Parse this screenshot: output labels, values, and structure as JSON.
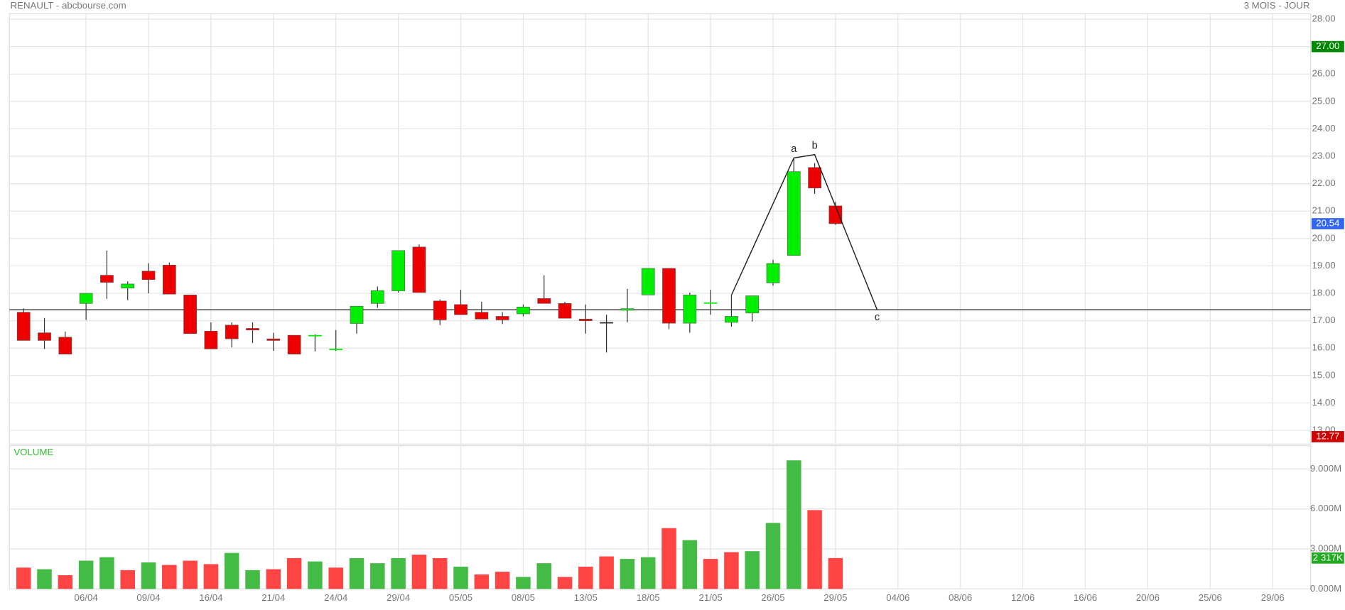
{
  "chart_data": {
    "type": "candlestick",
    "title": "RENAULT - abcbourse.com",
    "subtitle": "3 MOIS - JOUR",
    "volume_title": "VOLUME",
    "categories": [
      null,
      null,
      null,
      "06/04",
      null,
      null,
      "09/04",
      null,
      null,
      "16/04",
      null,
      null,
      "21/04",
      null,
      null,
      "24/04",
      null,
      null,
      "29/04",
      null,
      null,
      "05/05",
      null,
      null,
      "08/05",
      null,
      null,
      "13/05",
      null,
      null,
      "18/05",
      null,
      null,
      "21/05",
      null,
      null,
      "26/05",
      null,
      null,
      "29/05",
      null,
      null,
      "04/06",
      null,
      null,
      "08/06",
      null,
      null,
      "12/06",
      null,
      null,
      "16/06",
      null,
      null,
      "20/06",
      null,
      null,
      "25/06",
      null,
      null,
      "29/06",
      null
    ],
    "open": [
      17.31,
      16.56,
      16.4,
      17.63,
      18.66,
      18.19,
      18.81,
      19.03,
      17.94,
      16.62,
      16.84,
      16.72,
      16.34,
      16.47,
      16.44,
      15.94,
      16.9,
      17.63,
      18.09,
      19.69,
      17.72,
      17.59,
      17.31,
      17.16,
      17.25,
      17.81,
      17.63,
      17.06,
      16.94,
      17.38,
      17.94,
      18.91,
      16.91,
      17.63,
      16.94,
      17.28,
      18.38,
      19.38,
      22.59,
      21.19,
      null,
      null,
      null,
      null,
      null,
      null,
      null,
      null,
      null,
      null,
      null,
      null,
      null,
      null,
      null,
      null,
      null,
      null,
      null,
      null,
      null,
      null
    ],
    "high": [
      17.45,
      17.1,
      16.6,
      18.0,
      19.56,
      18.44,
      19.1,
      19.12,
      17.94,
      16.94,
      16.94,
      16.94,
      16.56,
      16.47,
      16.5,
      16.66,
      17.53,
      18.25,
      19.56,
      19.78,
      17.78,
      18.13,
      17.69,
      17.31,
      17.59,
      18.66,
      17.69,
      17.59,
      17.22,
      18.16,
      18.91,
      18.91,
      18.03,
      18.13,
      17.94,
      17.91,
      19.22,
      22.91,
      22.75,
      21.34,
      null,
      null,
      null,
      null,
      null,
      null,
      null,
      null,
      null,
      null,
      null,
      null,
      null,
      null,
      null,
      null,
      null,
      null,
      null,
      null,
      null,
      null
    ],
    "low": [
      16.28,
      15.97,
      15.78,
      17.03,
      17.8,
      17.75,
      18.0,
      17.97,
      16.53,
      15.97,
      16.03,
      16.19,
      15.9,
      15.78,
      15.88,
      15.9,
      16.53,
      17.47,
      18.03,
      18.03,
      16.84,
      17.22,
      17.06,
      16.88,
      17.16,
      17.63,
      17.09,
      16.53,
      15.84,
      16.94,
      17.94,
      16.69,
      16.56,
      17.22,
      16.78,
      16.97,
      18.28,
      19.38,
      21.63,
      20.5,
      null,
      null,
      null,
      null,
      null,
      null,
      null,
      null,
      null,
      null,
      null,
      null,
      null,
      null,
      null,
      null,
      null,
      null,
      null,
      null,
      null,
      null
    ],
    "close": [
      16.28,
      16.28,
      15.78,
      18.0,
      18.4,
      18.34,
      18.5,
      17.97,
      16.53,
      15.97,
      16.34,
      16.66,
      16.28,
      15.78,
      16.47,
      15.97,
      17.53,
      18.1,
      19.56,
      18.03,
      17.03,
      17.22,
      17.06,
      17.03,
      17.5,
      17.63,
      17.09,
      17.0,
      16.94,
      17.44,
      18.91,
      16.91,
      17.94,
      17.66,
      17.16,
      17.91,
      19.09,
      22.44,
      21.84,
      20.54,
      null,
      null,
      null,
      null,
      null,
      null,
      null,
      null,
      null,
      null,
      null,
      null,
      null,
      null,
      null,
      null,
      null,
      null,
      null,
      null,
      null,
      null
    ],
    "up_color": "#00ee00",
    "down_color": "#ee0000",
    "ylim": [
      12.5,
      28.2
    ],
    "yticks": [
      {
        "value": 13,
        "label": "13.00"
      },
      {
        "value": 14,
        "label": "14.00"
      },
      {
        "value": 15,
        "label": "15.00"
      },
      {
        "value": 16,
        "label": "16.00"
      },
      {
        "value": 17,
        "label": "17.00"
      },
      {
        "value": 18,
        "label": "18.00"
      },
      {
        "value": 19,
        "label": "19.00"
      },
      {
        "value": 20,
        "label": "20.00"
      },
      {
        "value": 21,
        "label": "21.00"
      },
      {
        "value": 22,
        "label": "22.00"
      },
      {
        "value": 23,
        "label": "23.00"
      },
      {
        "value": 24,
        "label": "24.00"
      },
      {
        "value": 25,
        "label": "25.00"
      },
      {
        "value": 26,
        "label": "26.00"
      },
      {
        "value": 27,
        "label": "27.00"
      },
      {
        "value": 28,
        "label": "28.00"
      }
    ],
    "price_markers": [
      {
        "value": 27,
        "label": "27.00",
        "color": "#008800"
      },
      {
        "value": 20.54,
        "label": "20.54",
        "color": "#3366ee"
      },
      {
        "value": 12.77,
        "label": "12.77",
        "color": "#cc0000"
      }
    ],
    "hline": 17.4,
    "drawing": {
      "x": [
        34,
        37,
        38,
        41
      ],
      "y": [
        17.93,
        22.94,
        23.06,
        17.4
      ],
      "labels": [
        null,
        "a",
        "b",
        "c"
      ]
    },
    "volume": [
      1.6,
      1.48,
      1.03,
      2.12,
      2.38,
      1.41,
      1.99,
      1.8,
      2.12,
      1.86,
      2.7,
      1.41,
      1.48,
      2.31,
      2.06,
      1.6,
      2.31,
      1.93,
      2.31,
      2.57,
      2.31,
      1.67,
      1.09,
      1.29,
      0.9,
      1.93,
      0.9,
      1.67,
      2.44,
      2.25,
      2.38,
      4.56,
      3.66,
      2.25,
      2.76,
      2.83,
      4.95,
      9.64,
      5.91,
      2.317,
      null,
      null,
      null,
      null,
      null,
      null,
      null,
      null,
      null,
      null,
      null,
      null,
      null,
      null,
      null,
      null,
      null,
      null,
      null,
      null,
      null,
      null
    ],
    "volume_colors": [
      "#ff4444",
      "#44bb44",
      "#ff4444",
      "#44bb44",
      "#44bb44",
      "#ff4444",
      "#44bb44",
      "#ff4444",
      "#ff4444",
      "#ff4444",
      "#44bb44",
      "#44bb44",
      "#ff4444",
      "#ff4444",
      "#44bb44",
      "#ff4444",
      "#44bb44",
      "#44bb44",
      "#44bb44",
      "#ff4444",
      "#ff4444",
      "#44bb44",
      "#ff4444",
      "#ff4444",
      "#44bb44",
      "#44bb44",
      "#ff4444",
      "#ff4444",
      "#ff4444",
      "#44bb44",
      "#44bb44",
      "#ff4444",
      "#44bb44",
      "#ff4444",
      "#ff4444",
      "#44bb44",
      "#44bb44",
      "#44bb44",
      "#ff4444",
      "#ff4444",
      null,
      null,
      null,
      null,
      null,
      null,
      null,
      null,
      null,
      null,
      null,
      null,
      null,
      null,
      null,
      null,
      null,
      null,
      null,
      null,
      null,
      null
    ],
    "vlim": [
      0,
      10.73
    ],
    "vticks": [
      {
        "value": 0,
        "label": "0.000M"
      },
      {
        "value": 3,
        "label": "3.000M"
      },
      {
        "value": 6,
        "label": "6.000M"
      },
      {
        "value": 9,
        "label": "9.000M"
      }
    ],
    "volume_marker": {
      "value": 2.317,
      "label": "2 317K",
      "color": "#22aa22"
    }
  }
}
